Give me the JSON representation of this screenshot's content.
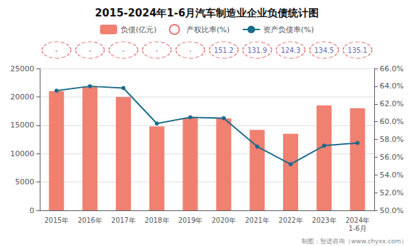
{
  "chart_data": {
    "type": "bar",
    "title": "2015-2024年1-6月汽车制造业企业负债统计图",
    "categories": [
      "2015年",
      "2016年",
      "2017年",
      "2018年",
      "2019年",
      "2020年",
      "2021年",
      "2022年",
      "2023年",
      "2024年\n1-6月"
    ],
    "series": [
      {
        "name": "负债(亿元)",
        "type": "bar",
        "color": "#F08070",
        "values": [
          21000,
          21800,
          20000,
          14800,
          16300,
          16200,
          14200,
          13500,
          18500,
          18000
        ]
      },
      {
        "name": "产权比率(%)",
        "type": "text",
        "color": "#E05050",
        "data_labels": true,
        "line_style": "dashed",
        "values": [
          null,
          null,
          null,
          null,
          null,
          151.2,
          131.9,
          124.3,
          134.5,
          135.1
        ],
        "value_labels": [
          "-",
          "-",
          "-",
          "-",
          "-",
          "151.2",
          "131.9",
          "124.3",
          "134.5",
          "135.1"
        ]
      },
      {
        "name": "资产负债率(%)",
        "type": "line",
        "color": "#1A6B8A",
        "marker": "circle",
        "axis": "y2",
        "values": [
          63.5,
          64.0,
          63.8,
          59.8,
          60.5,
          60.4,
          57.2,
          55.2,
          57.3,
          57.6
        ]
      }
    ],
    "ylim": [
      0,
      25000
    ],
    "yticks": [
      0,
      5000,
      10000,
      15000,
      20000,
      25000
    ],
    "y2lim": [
      50.0,
      66.0
    ],
    "y2ticks": [
      {
        "value": 50.0,
        "label": "50.0%"
      },
      {
        "value": 52.0,
        "label": "52.0%"
      },
      {
        "value": 54.0,
        "label": "54.0%"
      },
      {
        "value": 56.0,
        "label": "56.0%"
      },
      {
        "value": 58.0,
        "label": "58.0%"
      },
      {
        "value": 60.0,
        "label": "60.0%"
      },
      {
        "value": 62.0,
        "label": "62.0%"
      },
      {
        "value": 64.0,
        "label": "64.0%"
      },
      {
        "value": 66.0,
        "label": "66.0%"
      }
    ],
    "grid": true,
    "legend": "top",
    "annotations": [
      "制图：智进咨询（www.chyxx.com）"
    ]
  }
}
